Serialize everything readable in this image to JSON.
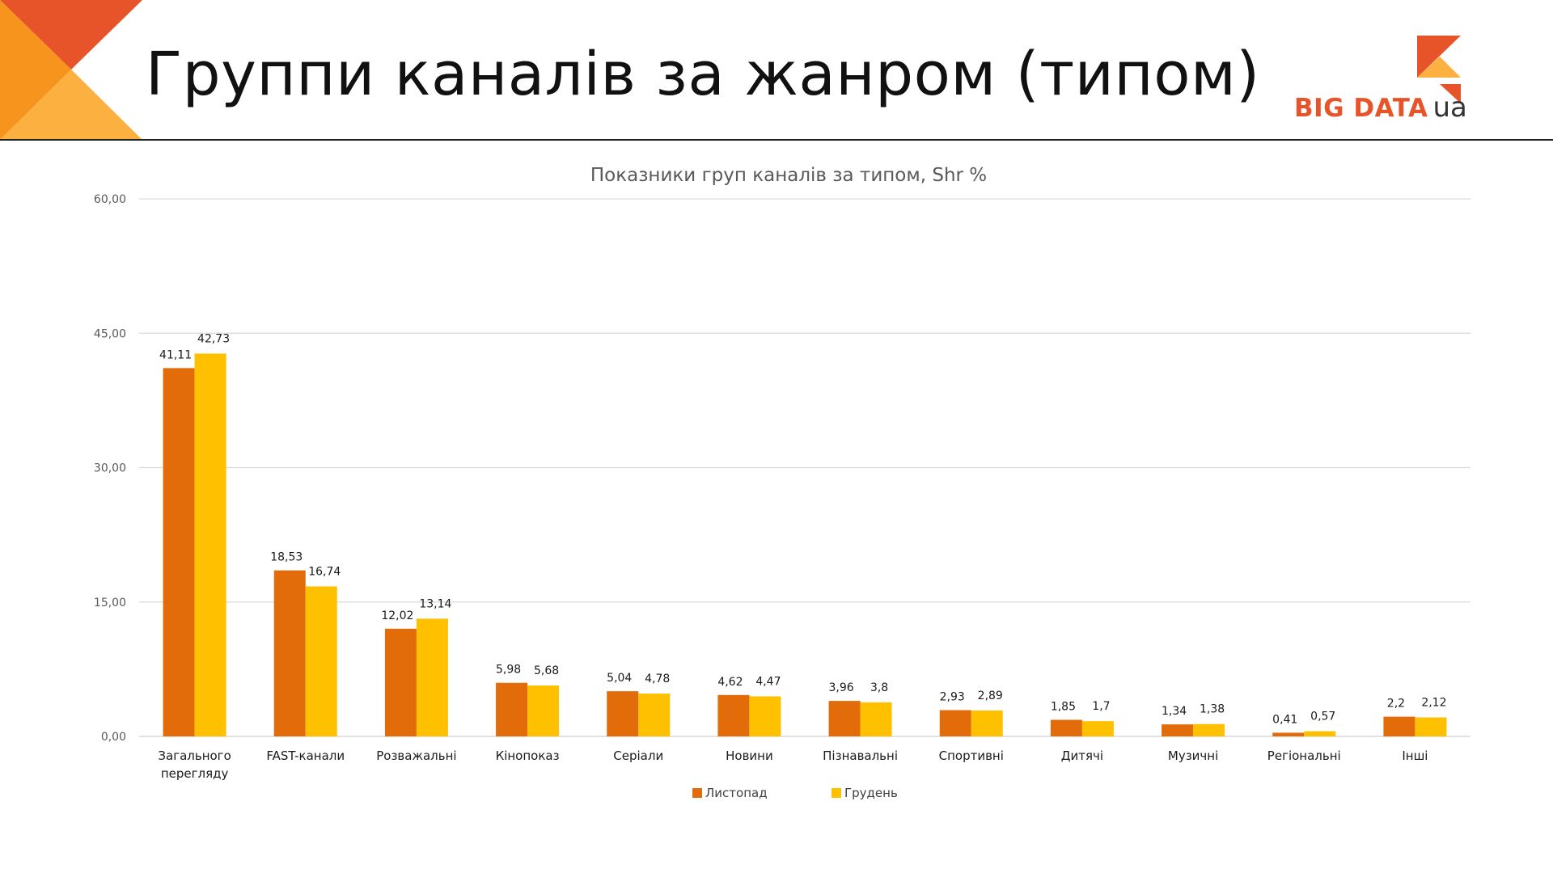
{
  "slide": {
    "title": "Группи каналів за жанром (типом)"
  },
  "logo": {
    "main": "BIG DATA",
    "sub": "ua"
  },
  "colors": {
    "series1": "#e36c0a",
    "series2": "#ffc000",
    "grid": "#d9d9d9",
    "axis_text": "#595959",
    "accent_red": "#e8542a",
    "accent_orange": "#f7941d",
    "accent_light": "#fbb040"
  },
  "chart_data": {
    "type": "bar",
    "title": "Показники груп каналів за типом, Shr %",
    "categories": [
      [
        "Загального",
        "перегляду"
      ],
      [
        "FAST-канали"
      ],
      [
        "Розважальні"
      ],
      [
        "Кінопоказ"
      ],
      [
        "Серіали"
      ],
      [
        "Новини"
      ],
      [
        "Пізнавальні"
      ],
      [
        "Спортивні"
      ],
      [
        "Дитячі"
      ],
      [
        "Музичні"
      ],
      [
        "Регіональні"
      ],
      [
        "Інші"
      ]
    ],
    "series": [
      {
        "name": "Листопад",
        "values": [
          41.11,
          18.53,
          12.02,
          5.98,
          5.04,
          4.62,
          3.96,
          2.93,
          1.85,
          1.34,
          0.41,
          2.2
        ],
        "labels": [
          "41,11",
          "18,53",
          "12,02",
          "5,98",
          "5,04",
          "4,62",
          "3,96",
          "2,93",
          "1,85",
          "1,34",
          "0,41",
          "2,2"
        ]
      },
      {
        "name": "Грудень",
        "values": [
          42.73,
          16.74,
          13.14,
          5.68,
          4.78,
          4.47,
          3.8,
          2.89,
          1.7,
          1.38,
          0.57,
          2.12
        ],
        "labels": [
          "42,73",
          "16,74",
          "13,14",
          "5,68",
          "4,78",
          "4,47",
          "3,8",
          "2,89",
          "1,7",
          "1,38",
          "0,57",
          "2,12"
        ]
      }
    ],
    "yticks": [
      0,
      15,
      30,
      45,
      60
    ],
    "ytick_labels": [
      "0,00",
      "15,00",
      "30,00",
      "45,00",
      "60,00"
    ],
    "ylim": [
      0,
      60
    ],
    "grid": true,
    "legend_position": "bottom"
  }
}
